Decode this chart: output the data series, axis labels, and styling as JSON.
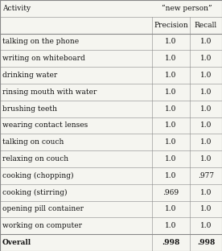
{
  "activities": [
    "talking on the phone",
    "writing on whiteboard",
    "drinking water",
    "rinsing mouth with water",
    "brushing teeth",
    "wearing contact lenses",
    "talking on couch",
    "relaxing on couch",
    "cooking (chopping)",
    "cooking (stirring)",
    "opening pill container",
    "working on computer",
    "Overall"
  ],
  "precision": [
    "1.0",
    "1.0",
    "1.0",
    "1.0",
    "1.0",
    "1.0",
    "1.0",
    "1.0",
    "1.0",
    ".969",
    "1.0",
    "1.0",
    ".998"
  ],
  "recall": [
    "1.0",
    "1.0",
    "1.0",
    "1.0",
    "1.0",
    "1.0",
    "1.0",
    "1.0",
    ".977",
    "1.0",
    "1.0",
    "1.0",
    ".998"
  ],
  "col_header_1": "Activity",
  "col_header_2": "“new person”",
  "col_header_2a": "Precision",
  "col_header_2b": "Recall",
  "bg_color": "#f5f5f0",
  "line_color": "#888888",
  "text_color": "#111111",
  "col_split1": 0.685,
  "col_split2": 0.855
}
